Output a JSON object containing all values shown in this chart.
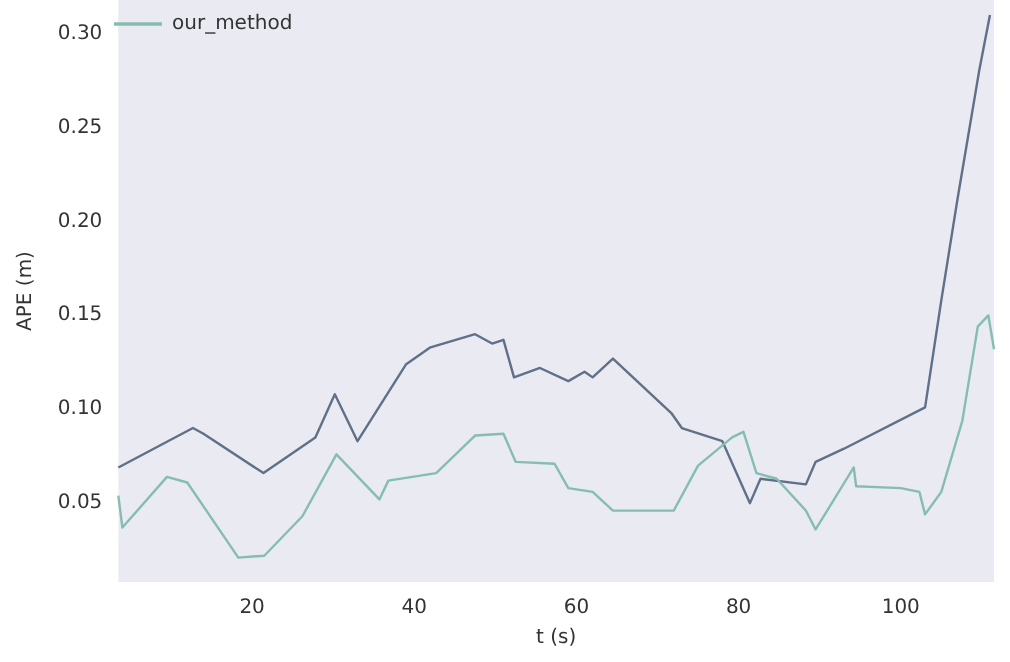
{
  "chart_data": {
    "type": "line",
    "xlabel": "t (s)",
    "ylabel": "APE (m)",
    "xlim": [
      3.5,
      111.5
    ],
    "ylim": [
      0.008,
      0.318
    ],
    "xticks": [
      20,
      40,
      60,
      80,
      100
    ],
    "yticks": [
      0.05,
      {
        "value": 0.1,
        "label": "0.10"
      },
      0.15,
      {
        "value": 0.2,
        "label": "0.20"
      },
      0.25,
      {
        "value": 0.3,
        "label": "0.30"
      }
    ],
    "grid": false,
    "legend": "top left",
    "marker": "none",
    "line_style": "solid",
    "series": [
      {
        "color": "#5f7088",
        "x": [
          3.5,
          12.7,
          14,
          21.4,
          27.8,
          30.2,
          33,
          39,
          42,
          47.5,
          49.6,
          51,
          52.3,
          55.5,
          59,
          61,
          62,
          64.5,
          71.7,
          73,
          78,
          81.4,
          82.7,
          88.3,
          89.5,
          93,
          103,
          105,
          107,
          109.7,
          111
        ],
        "values": [
          0.069,
          0.09,
          0.087,
          0.066,
          0.085,
          0.108,
          0.083,
          0.124,
          0.133,
          0.14,
          0.135,
          0.137,
          0.117,
          0.122,
          0.115,
          0.12,
          0.117,
          0.127,
          0.098,
          0.09,
          0.083,
          0.05,
          0.063,
          0.06,
          0.072,
          0.079,
          0.101,
          0.158,
          0.212,
          0.281,
          0.31
        ]
      },
      {
        "name": "our_method",
        "color": "#86bdb3",
        "x": [
          3.5,
          4,
          9.5,
          12,
          18.3,
          21.5,
          26.2,
          30.4,
          35.7,
          36.8,
          42.7,
          47.5,
          51,
          52.5,
          57.3,
          59,
          62,
          64.5,
          72,
          75,
          79.2,
          80.6,
          82.2,
          84.7,
          88.3,
          89.5,
          94.2,
          94.5,
          100,
          102.3,
          103,
          105,
          107.6,
          109.5,
          110.8,
          111.5
        ],
        "values": [
          0.054,
          0.037,
          0.064,
          0.061,
          0.021,
          0.022,
          0.043,
          0.076,
          0.052,
          0.062,
          0.066,
          0.086,
          0.087,
          0.072,
          0.071,
          0.058,
          0.056,
          0.046,
          0.046,
          0.07,
          0.085,
          0.088,
          0.066,
          0.063,
          0.046,
          0.036,
          0.069,
          0.059,
          0.058,
          0.056,
          0.044,
          0.056,
          0.094,
          0.144,
          0.15,
          0.132
        ]
      }
    ]
  }
}
